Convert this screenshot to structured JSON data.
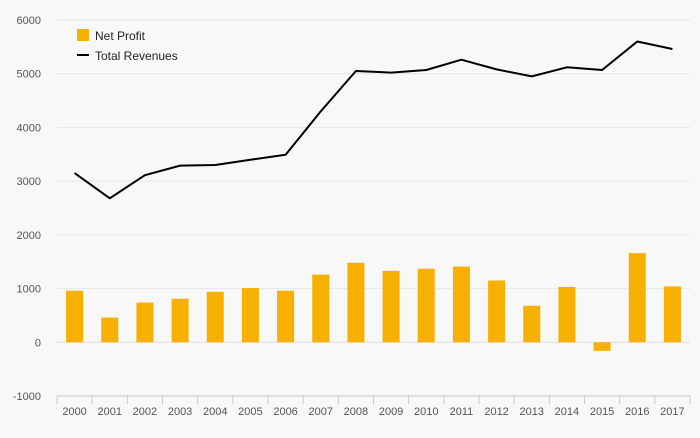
{
  "chart_data": {
    "type": "bar",
    "title": "",
    "xlabel": "",
    "ylabel": "",
    "ylim": [
      -1000,
      6000
    ],
    "yticks": [
      -1000,
      0,
      1000,
      2000,
      3000,
      4000,
      5000,
      6000
    ],
    "grid": true,
    "legend_position": "top-left",
    "categories": [
      "2000",
      "2001",
      "2002",
      "2003",
      "2004",
      "2005",
      "2006",
      "2007",
      "2008",
      "2009",
      "2010",
      "2011",
      "2012",
      "2013",
      "2014",
      "2015",
      "2016",
      "2017"
    ],
    "series": [
      {
        "name": "Net Profit",
        "type": "bar",
        "color": "#f7b000",
        "values": [
          960,
          460,
          740,
          810,
          940,
          1010,
          960,
          1260,
          1480,
          1330,
          1370,
          1410,
          1150,
          680,
          1030,
          -160,
          1660,
          1040
        ]
      },
      {
        "name": "Total Revenues",
        "type": "line",
        "color": "#000000",
        "values": [
          3150,
          2680,
          3110,
          3290,
          3300,
          3400,
          3490,
          4300,
          5050,
          5020,
          5070,
          5260,
          5080,
          4950,
          5120,
          5070,
          5600,
          5460
        ]
      }
    ]
  }
}
